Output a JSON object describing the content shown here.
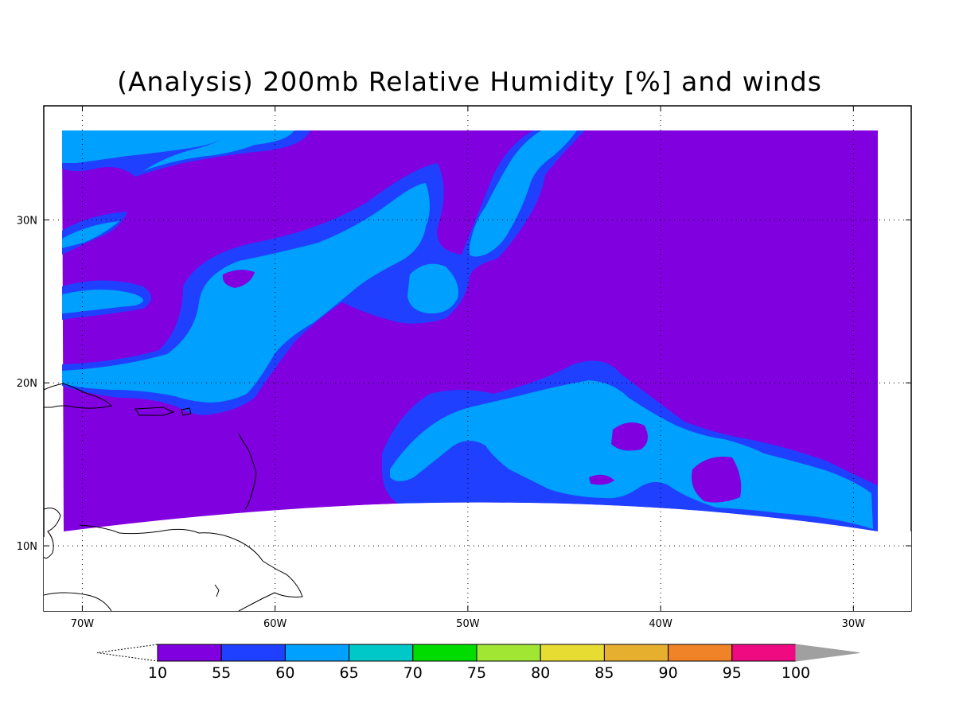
{
  "title": "(Analysis) 200mb Relative Humidity [%] and winds",
  "map": {
    "lon_range": [
      -72,
      -27
    ],
    "lat_range": [
      6,
      37
    ],
    "lon_ticks": [
      {
        "lon": -70,
        "label": "70W"
      },
      {
        "lon": -60,
        "label": "60W"
      },
      {
        "lon": -50,
        "label": "50W"
      },
      {
        "lon": -40,
        "label": "40W"
      },
      {
        "lon": -30,
        "label": "30W"
      }
    ],
    "lat_ticks": [
      {
        "lat": 30,
        "label": "30N"
      },
      {
        "lat": 20,
        "label": "20N"
      },
      {
        "lat": 10,
        "label": "10N"
      }
    ],
    "grid": "dotted"
  },
  "colorbar": {
    "levels": [
      "10",
      "55",
      "60",
      "65",
      "70",
      "75",
      "80",
      "85",
      "90",
      "95",
      "100"
    ],
    "colors": [
      "#8000e0",
      "#2040ff",
      "#00a0ff",
      "#00c8c8",
      "#00dc00",
      "#a0e632",
      "#e6dc32",
      "#e6af2d",
      "#f08228",
      "#f00a82"
    ],
    "under_color": "#ffffff",
    "over_color": "#a0a0a0"
  },
  "field_colors": {
    "rh_lt_55": "#8000e0",
    "rh_55_60": "#2040ff",
    "rh_60_65": "#00a0ff"
  }
}
